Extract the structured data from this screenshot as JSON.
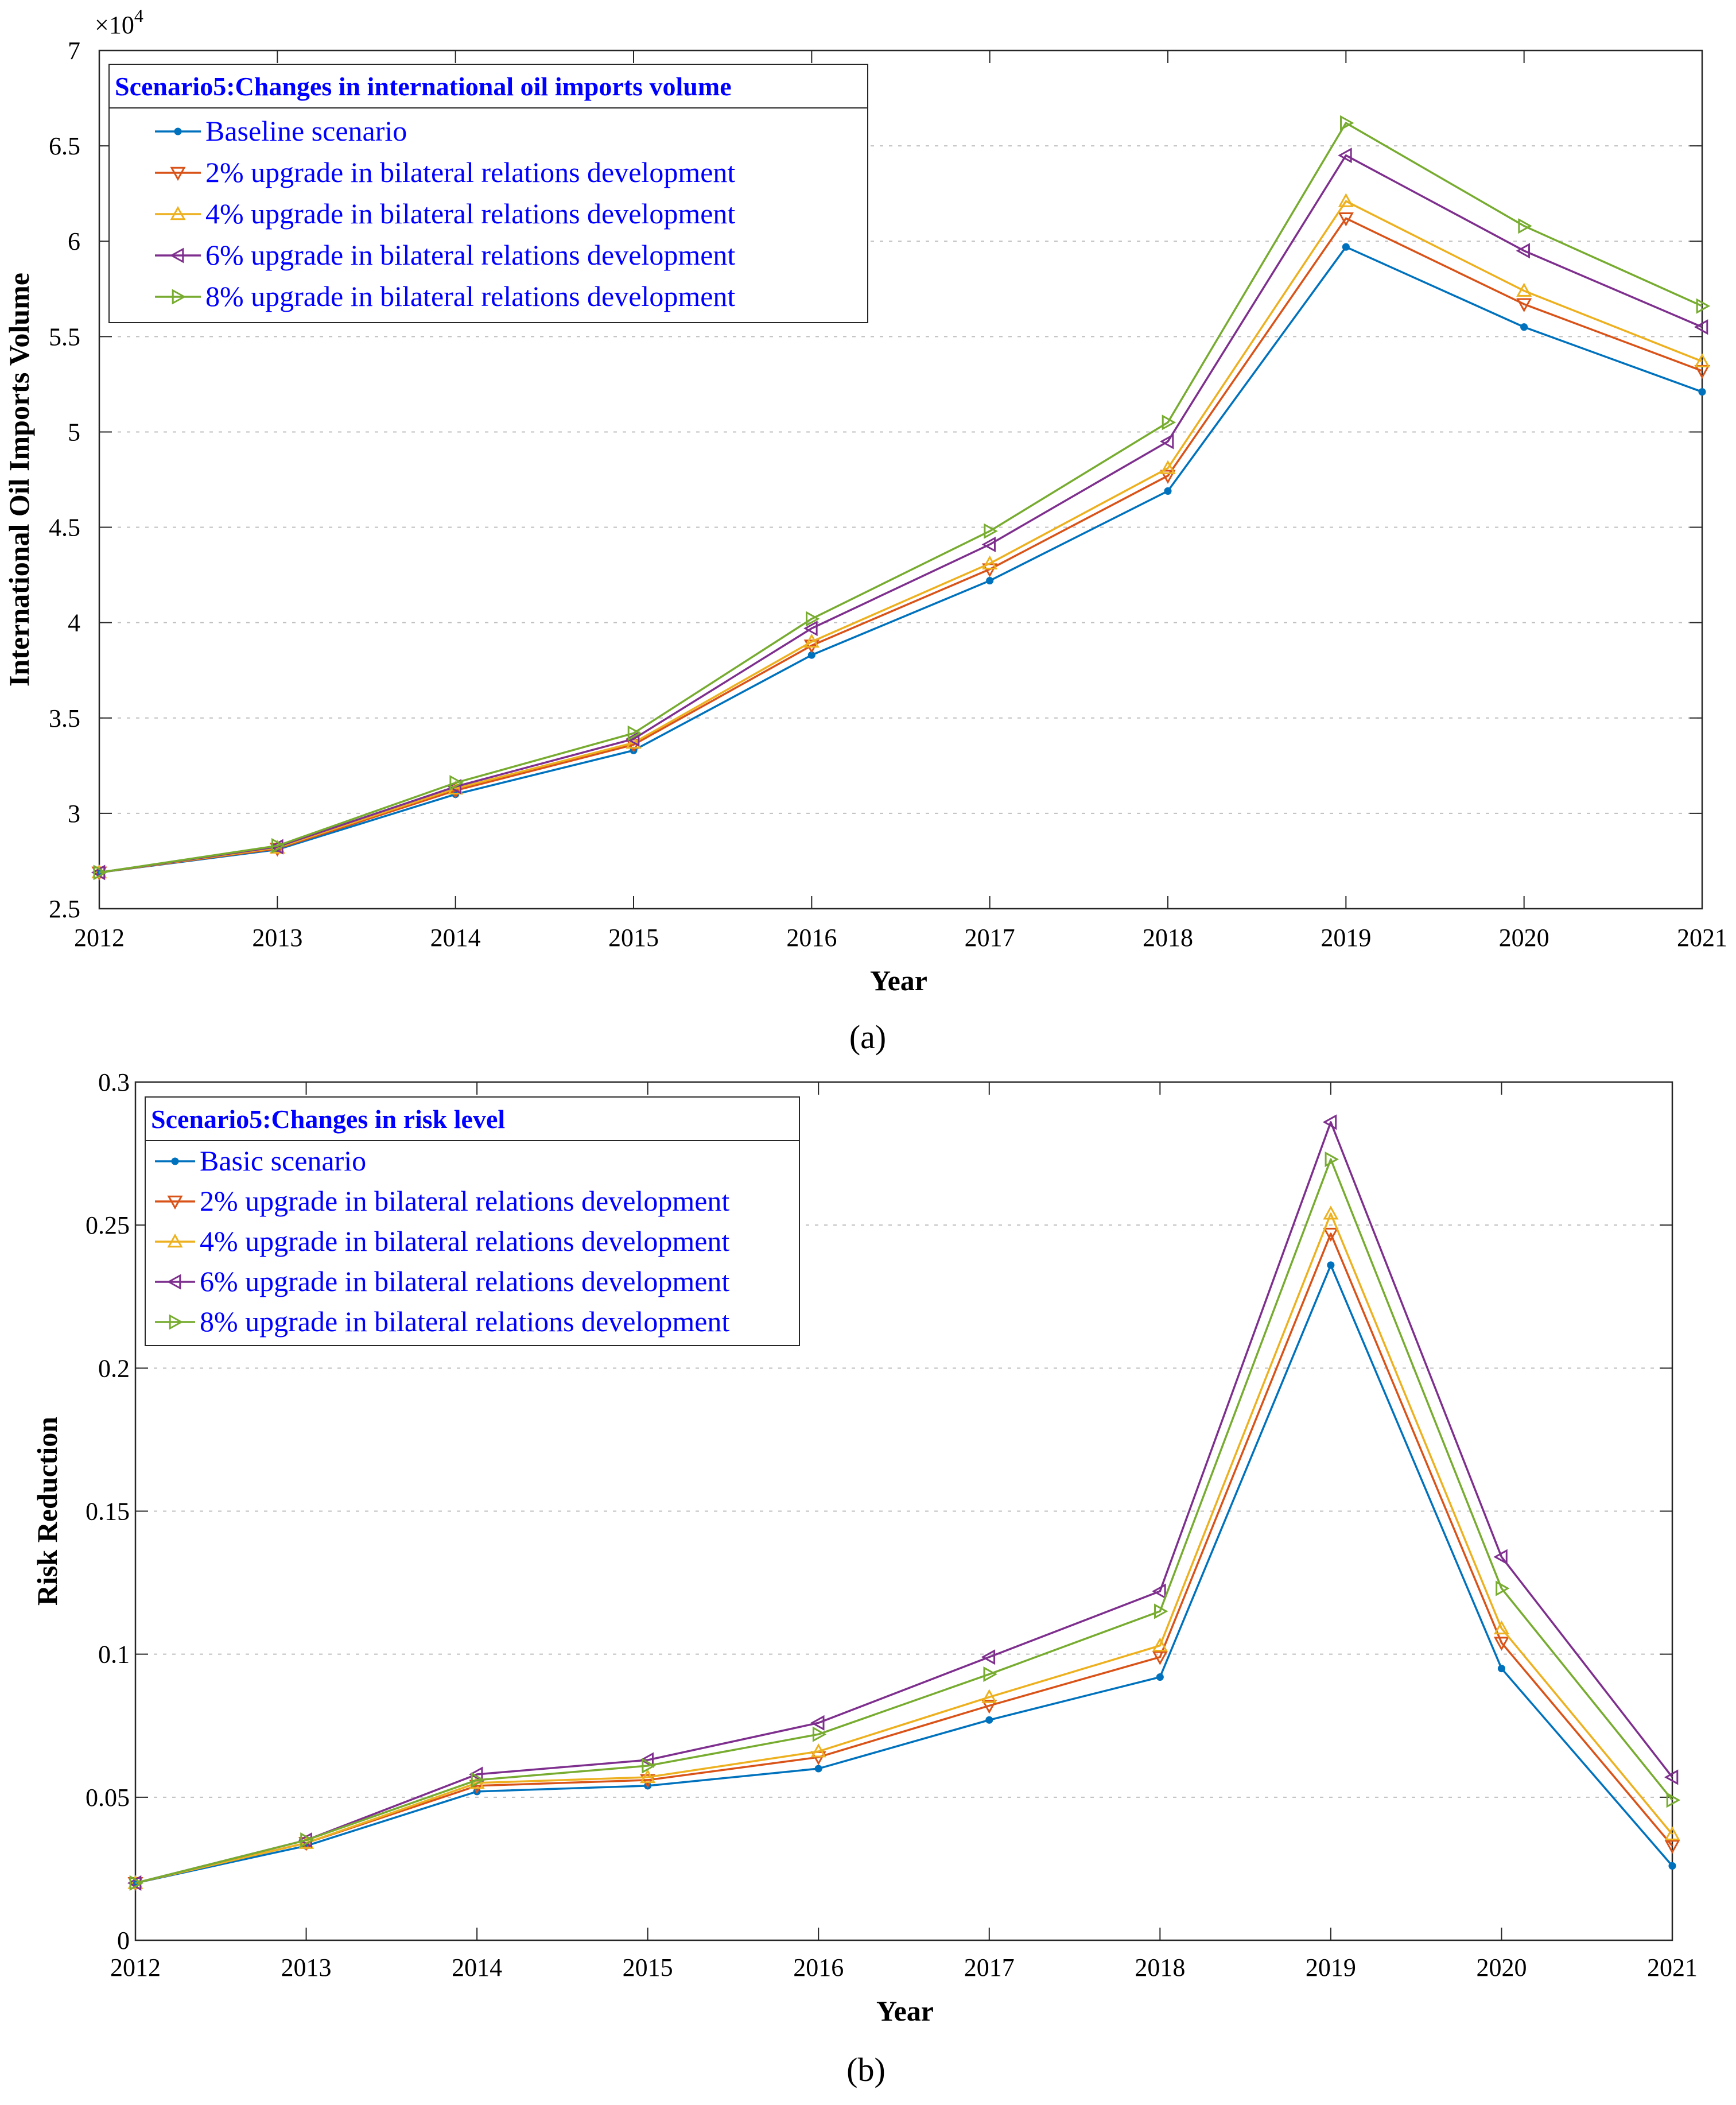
{
  "colors": {
    "blue": "#0072BD",
    "orange": "#D95319",
    "yellow": "#EDB120",
    "purple": "#7E2F8E",
    "green": "#77AC30",
    "text": "#000000",
    "legend_text": "#0000FF",
    "axis": "#262626",
    "grid": "#bfbfbf"
  },
  "chart_data": [
    {
      "type": "line",
      "panel_label": "(a)",
      "title": "",
      "legend_title": "Scenario5:Changes in international oil imports volume",
      "xlabel": "Year",
      "ylabel": "International Oil Imports Volume",
      "y_exponent_base": "×10",
      "y_exponent_power": "4",
      "x": [
        2012,
        2013,
        2014,
        2015,
        2016,
        2017,
        2018,
        2019,
        2020,
        2021
      ],
      "xticks": [
        2012,
        2013,
        2014,
        2015,
        2016,
        2017,
        2018,
        2019,
        2020,
        2021
      ],
      "xlim": [
        2012,
        2021
      ],
      "ylim": [
        2.5,
        7
      ],
      "yticks": [
        2.5,
        3,
        3.5,
        4,
        4.5,
        5,
        5.5,
        6,
        6.5,
        7
      ],
      "ytick_labels": [
        "2.5",
        "3",
        "3.5",
        "4",
        "4.5",
        "5",
        "5.5",
        "6",
        "6.5",
        "7"
      ],
      "y_grid": true,
      "legend_position": "top-left",
      "series": [
        {
          "name": "Baseline scenario",
          "color": "#0072BD",
          "marker": "dot",
          "values": [
            2.69,
            2.81,
            3.1,
            3.33,
            3.83,
            4.22,
            4.69,
            5.97,
            5.55,
            5.21
          ]
        },
        {
          "name": "2% upgrade in bilateral relations development",
          "color": "#D95319",
          "marker": "tri-down",
          "values": [
            2.69,
            2.815,
            3.12,
            3.36,
            3.88,
            4.28,
            4.77,
            6.12,
            5.67,
            5.32
          ]
        },
        {
          "name": "4% upgrade in bilateral relations development",
          "color": "#EDB120",
          "marker": "tri-up",
          "values": [
            2.69,
            2.82,
            3.13,
            3.37,
            3.9,
            4.31,
            4.81,
            6.21,
            5.74,
            5.37
          ]
        },
        {
          "name": "6% upgrade in bilateral relations development",
          "color": "#7E2F8E",
          "marker": "tri-left",
          "values": [
            2.69,
            2.825,
            3.14,
            3.39,
            3.97,
            4.41,
            4.95,
            6.45,
            5.95,
            5.55
          ]
        },
        {
          "name": "8% upgrade in bilateral relations development",
          "color": "#77AC30",
          "marker": "tri-right",
          "values": [
            2.69,
            2.83,
            3.16,
            3.42,
            4.02,
            4.48,
            5.05,
            6.62,
            6.08,
            5.66
          ]
        }
      ]
    },
    {
      "type": "line",
      "panel_label": "(b)",
      "title": "",
      "legend_title": "Scenario5:Changes in risk level",
      "xlabel": "Year",
      "ylabel": "Risk Reduction",
      "x": [
        2012,
        2013,
        2014,
        2015,
        2016,
        2017,
        2018,
        2019,
        2020,
        2021
      ],
      "xticks": [
        2012,
        2013,
        2014,
        2015,
        2016,
        2017,
        2018,
        2019,
        2020,
        2021
      ],
      "xlim": [
        2012,
        2021
      ],
      "ylim": [
        0,
        0.3
      ],
      "yticks": [
        0,
        0.05,
        0.1,
        0.15,
        0.2,
        0.25,
        0.3
      ],
      "ytick_labels": [
        "0",
        "0.05",
        "0.1",
        "0.15",
        "0.2",
        "0.25",
        "0.3"
      ],
      "y_grid": true,
      "legend_position": "top-left",
      "series": [
        {
          "name": "Basic scenario",
          "color": "#0072BD",
          "marker": "dot",
          "values": [
            0.02,
            0.033,
            0.052,
            0.054,
            0.06,
            0.077,
            0.092,
            0.236,
            0.095,
            0.026
          ]
        },
        {
          "name": "2% upgrade in bilateral relations development",
          "color": "#D95319",
          "marker": "tri-down",
          "values": [
            0.02,
            0.034,
            0.054,
            0.056,
            0.064,
            0.082,
            0.099,
            0.247,
            0.104,
            0.033
          ]
        },
        {
          "name": "4% upgrade in bilateral relations development",
          "color": "#EDB120",
          "marker": "tri-up",
          "values": [
            0.02,
            0.034,
            0.055,
            0.057,
            0.066,
            0.085,
            0.103,
            0.254,
            0.109,
            0.037
          ]
        },
        {
          "name": "6% upgrade in bilateral relations development",
          "color": "#7E2F8E",
          "marker": "tri-left",
          "values": [
            0.02,
            0.035,
            0.058,
            0.063,
            0.076,
            0.099,
            0.122,
            0.286,
            0.134,
            0.057
          ]
        },
        {
          "name": "8% upgrade in bilateral relations development",
          "color": "#77AC30",
          "marker": "tri-right",
          "values": [
            0.02,
            0.035,
            0.056,
            0.061,
            0.072,
            0.093,
            0.115,
            0.273,
            0.123,
            0.049
          ]
        }
      ]
    }
  ]
}
